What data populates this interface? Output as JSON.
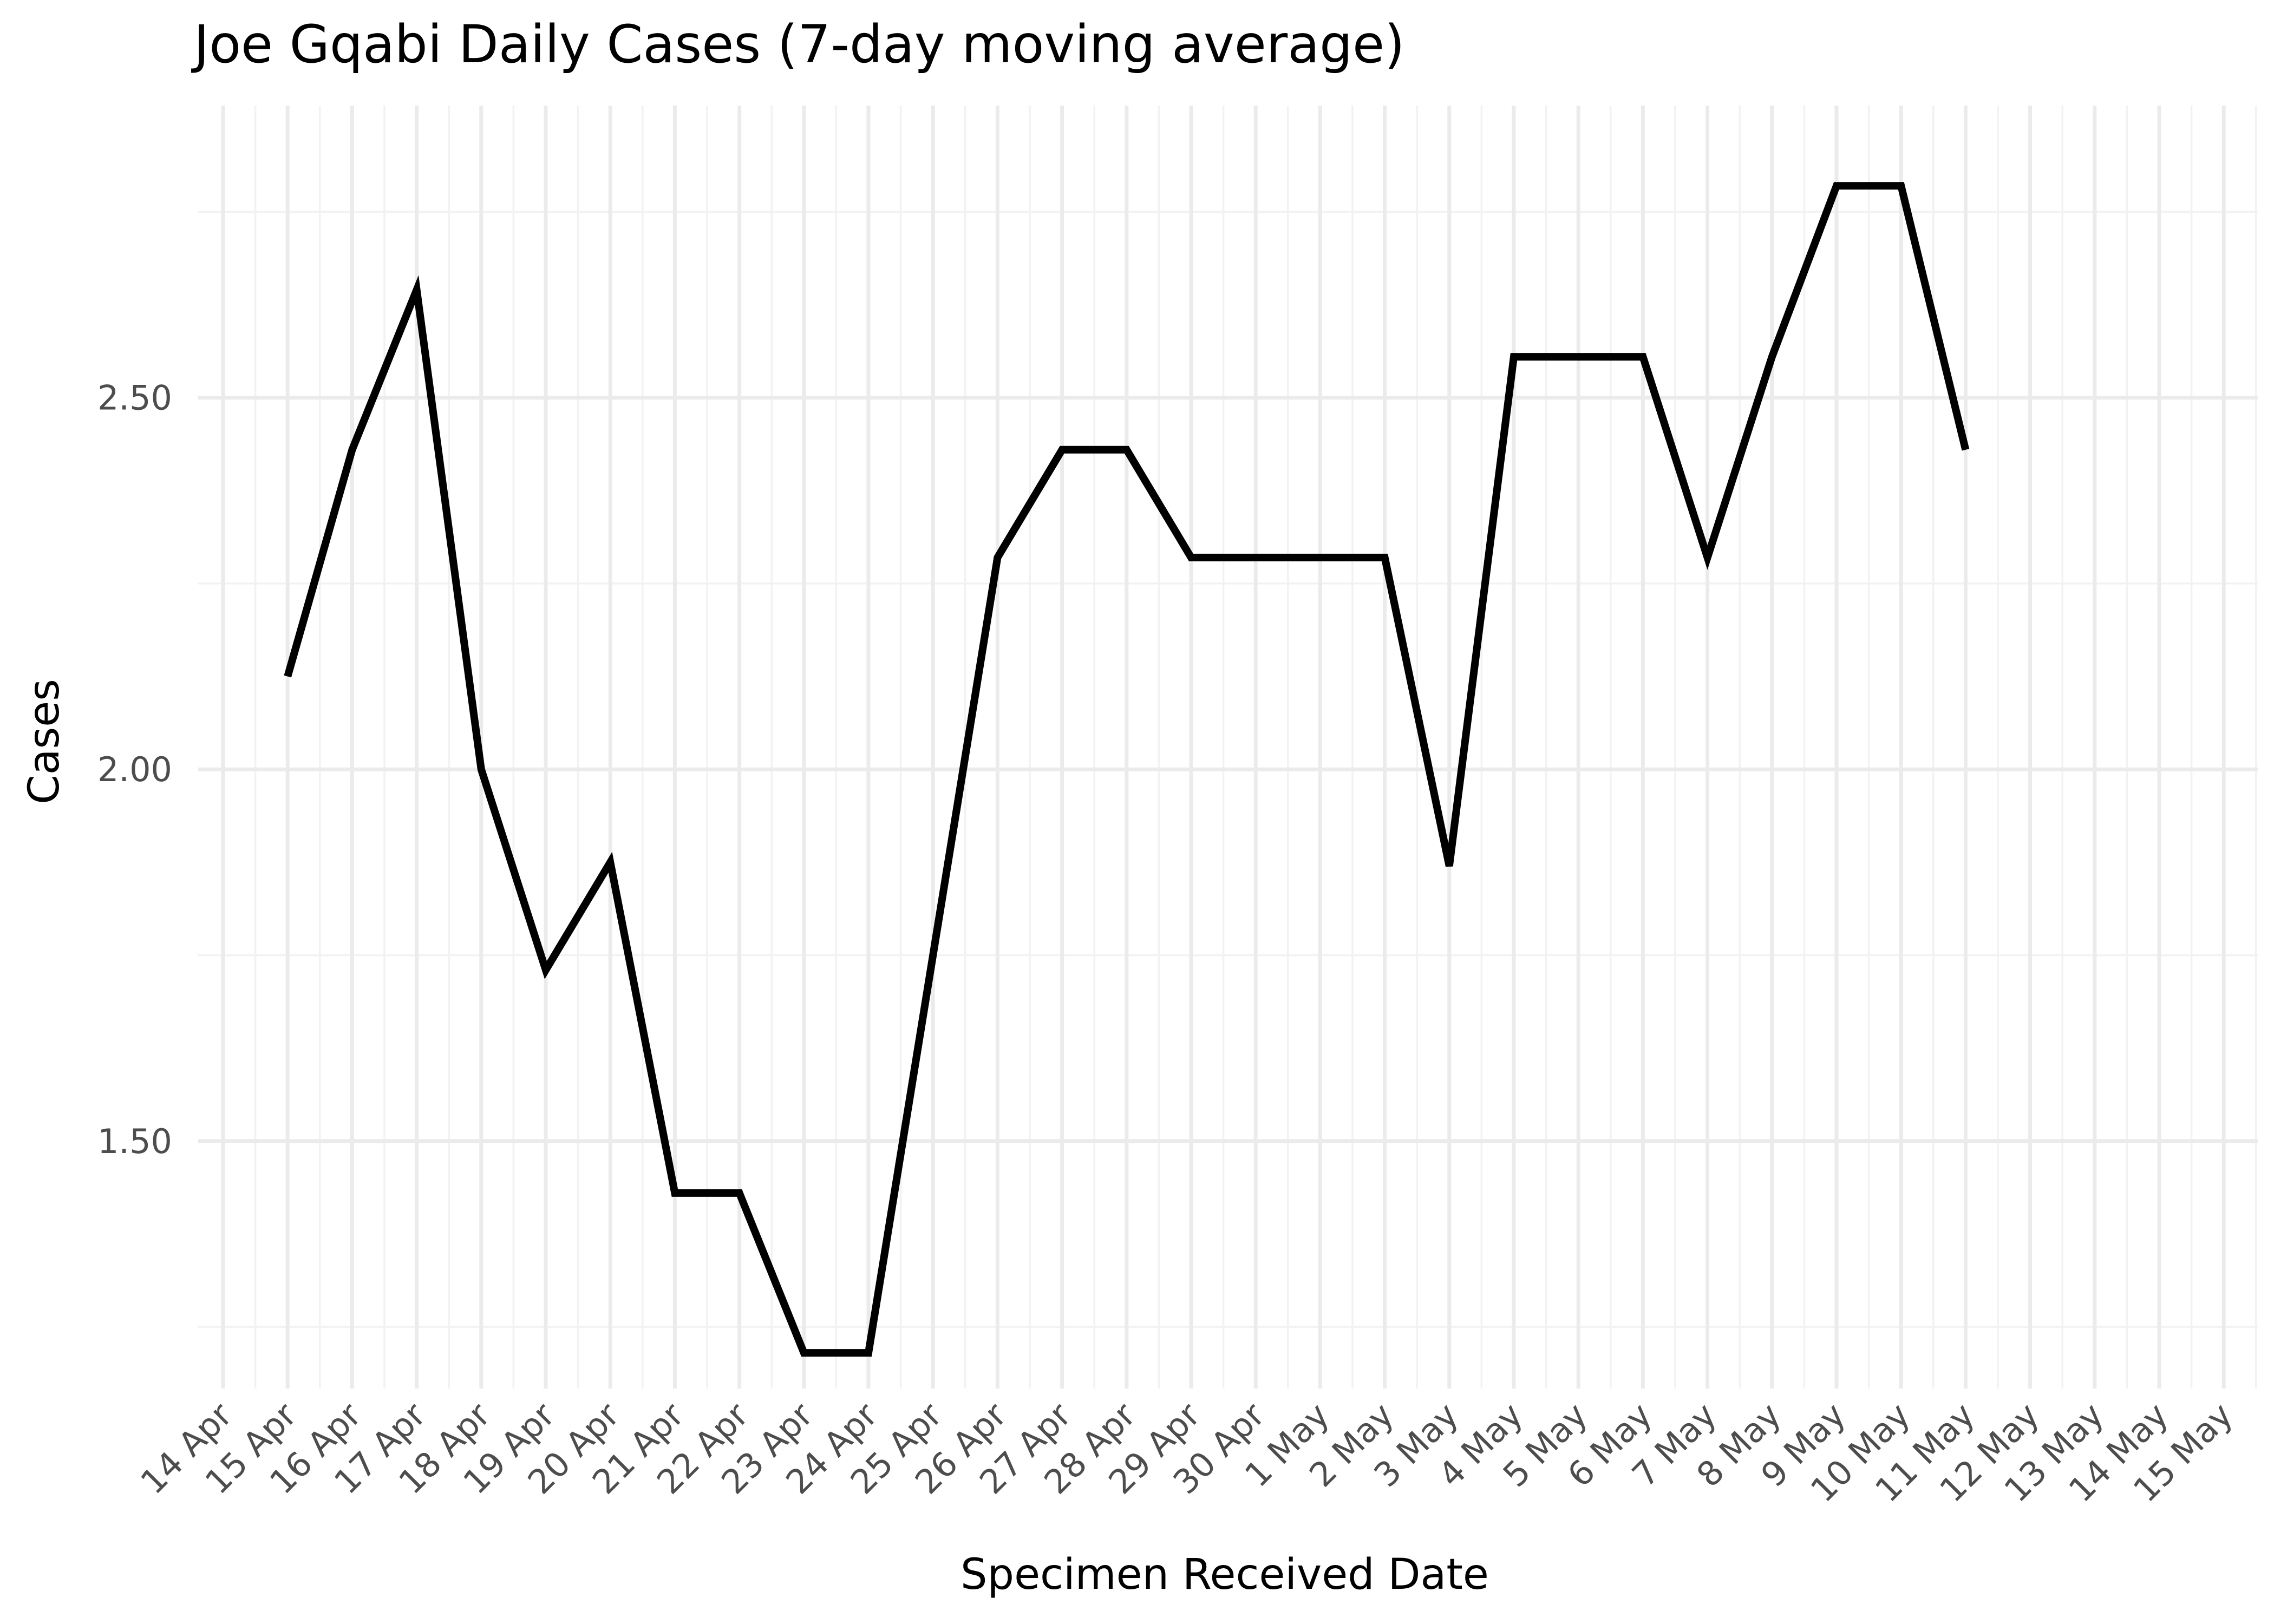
{
  "chart_data": {
    "type": "line",
    "title": "Joe Gqabi Daily Cases (7-day moving average)",
    "xlabel": "Specimen Received Date",
    "ylabel": "Cases",
    "x_ticks": [
      "14 Apr",
      "15 Apr",
      "16 Apr",
      "17 Apr",
      "18 Apr",
      "19 Apr",
      "20 Apr",
      "21 Apr",
      "22 Apr",
      "23 Apr",
      "24 Apr",
      "25 Apr",
      "26 Apr",
      "27 Apr",
      "28 Apr",
      "29 Apr",
      "30 Apr",
      "1 May",
      "2 May",
      "3 May",
      "4 May",
      "5 May",
      "6 May",
      "7 May",
      "8 May",
      "9 May",
      "10 May",
      "11 May",
      "12 May",
      "13 May",
      "14 May",
      "15 May"
    ],
    "y_ticks": [
      "1.50",
      "2.00",
      "2.50"
    ],
    "y_tick_values": [
      1.5,
      2.0,
      2.5
    ],
    "ylim": [
      1.167,
      2.893
    ],
    "grid": true,
    "x": [
      "15 Apr",
      "16 Apr",
      "17 Apr",
      "18 Apr",
      "19 Apr",
      "20 Apr",
      "21 Apr",
      "22 Apr",
      "23 Apr",
      "24 Apr",
      "25 Apr",
      "26 Apr",
      "27 Apr",
      "28 Apr",
      "29 Apr",
      "30 Apr",
      "1 May",
      "2 May",
      "3 May",
      "4 May",
      "5 May",
      "6 May",
      "7 May",
      "8 May",
      "9 May",
      "10 May",
      "11 May"
    ],
    "values": [
      2.125,
      2.43,
      2.645,
      2.0,
      1.73,
      1.875,
      1.43,
      1.43,
      1.215,
      1.215,
      1.75,
      2.285,
      2.43,
      2.43,
      2.285,
      2.285,
      2.285,
      2.285,
      1.87,
      2.555,
      2.555,
      2.555,
      2.285,
      2.555,
      2.785,
      2.785,
      2.43
    ]
  }
}
